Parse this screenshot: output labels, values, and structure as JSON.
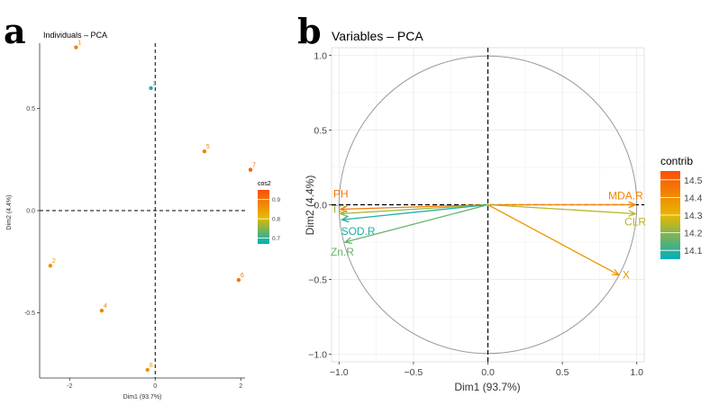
{
  "figure": {
    "panel_a_letter": "a",
    "panel_b_letter": "b"
  },
  "chart_data": [
    {
      "type": "scatter",
      "title": "Individuals – PCA",
      "xlabel": "Dim1 (93.7%)",
      "ylabel": "Dim2 (4.4%)",
      "xlim": [
        -2.7,
        2.1
      ],
      "ylim": [
        -0.82,
        0.82
      ],
      "xticks": [
        -2,
        0,
        2
      ],
      "xtick_labels": [
        "-2",
        "0",
        "2"
      ],
      "yticks": [
        -0.5,
        0.0,
        0.5
      ],
      "ytick_labels": [
        "-0.5",
        "0.0",
        "0.5"
      ],
      "points": [
        {
          "label": "1",
          "x": -1.85,
          "y": 0.8,
          "cos2": 0.88
        },
        {
          "label": "2",
          "x": -2.45,
          "y": -0.27,
          "cos2": 0.86
        },
        {
          "label": "3",
          "x": -0.1,
          "y": 0.6,
          "cos2": 0.69
        },
        {
          "label": "4",
          "x": -1.25,
          "y": -0.49,
          "cos2": 0.88
        },
        {
          "label": "5",
          "x": 1.15,
          "y": 0.29,
          "cos2": 0.88
        },
        {
          "label": "6",
          "x": 1.95,
          "y": -0.34,
          "cos2": 0.9
        },
        {
          "label": "7",
          "x": 2.7,
          "y": 0.2,
          "cos2": 0.92
        },
        {
          "label": "8",
          "x": -0.18,
          "y": -0.78,
          "cos2": 0.86
        }
      ],
      "legend": {
        "title": "cos2",
        "position": "right",
        "ticks": [
          0.9,
          0.8,
          0.7
        ],
        "tick_labels": [
          "0.9",
          "0.8",
          "0.7"
        ],
        "range": [
          0.67,
          0.95
        ],
        "colors": [
          "#00AFBB",
          "#E7B800",
          "#FC4E07"
        ]
      },
      "grid": false
    },
    {
      "type": "scatter",
      "title": "Variables – PCA",
      "xlabel": "Dim1 (93.7%)",
      "ylabel": "Dim2 (4.4%)",
      "xlim": [
        -1.05,
        1.05
      ],
      "ylim": [
        -1.05,
        1.05
      ],
      "xticks": [
        -1.0,
        -0.5,
        0.0,
        0.5,
        1.0
      ],
      "xtick_labels": [
        "−1.0",
        "−0.5",
        "0.0",
        "0.5",
        "1.0"
      ],
      "yticks": [
        -1.0,
        -0.5,
        0.0,
        0.5,
        1.0
      ],
      "ytick_labels": [
        "−1.0",
        "−0.5",
        "0.0",
        "0.5",
        "1.0"
      ],
      "vectors": [
        {
          "label": "MDA.R",
          "x": 0.99,
          "y": 0.0,
          "contrib": 14.42
        },
        {
          "label": "CLR",
          "x": 0.99,
          "y": -0.06,
          "contrib": 14.25
        },
        {
          "label": "X",
          "x": 0.88,
          "y": -0.47,
          "contrib": 14.38
        },
        {
          "label": "PH",
          "x": -0.99,
          "y": -0.03,
          "contrib": 14.45
        },
        {
          "label": "TC",
          "x": -0.99,
          "y": -0.06,
          "contrib": 14.22
        },
        {
          "label": "SOD.R",
          "x": -0.98,
          "y": -0.1,
          "contrib": 14.08
        },
        {
          "label": "Zn.R",
          "x": -0.96,
          "y": -0.25,
          "contrib": 14.16
        }
      ],
      "legend": {
        "title": "contrib",
        "position": "right",
        "ticks": [
          14.5,
          14.4,
          14.3,
          14.2,
          14.1
        ],
        "tick_labels": [
          "14.5",
          "14.4",
          "14.3",
          "14.2",
          "14.1"
        ],
        "range": [
          14.05,
          14.55
        ],
        "colors": [
          "#00AFBB",
          "#E7B800",
          "#FC4E07"
        ]
      },
      "grid": true
    }
  ]
}
